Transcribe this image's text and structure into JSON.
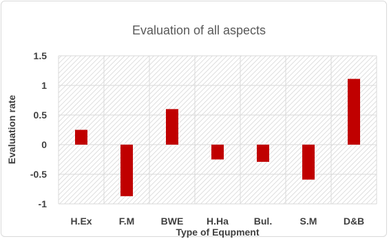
{
  "chart_data": {
    "type": "bar",
    "title": "Evaluation of all aspects",
    "xlabel": "Type of Equpment",
    "ylabel": "Evaluation rate",
    "categories": [
      "H.Ex",
      "F.M",
      "BWE",
      "H.Ha",
      "Bul.",
      "S.M",
      "D&B"
    ],
    "values": [
      0.25,
      -0.87,
      0.6,
      -0.25,
      -0.29,
      -0.59,
      1.11
    ],
    "ylim": [
      -1,
      1.5
    ],
    "yticks": [
      "1.5",
      "1",
      "0.5",
      "0",
      "-0.5",
      "-1"
    ],
    "ytick_values": [
      1.5,
      1,
      0.5,
      0,
      -0.5,
      -1
    ],
    "grid": true,
    "legend": "none",
    "bar_color": "#c00000",
    "plot_fill": "hatched"
  }
}
